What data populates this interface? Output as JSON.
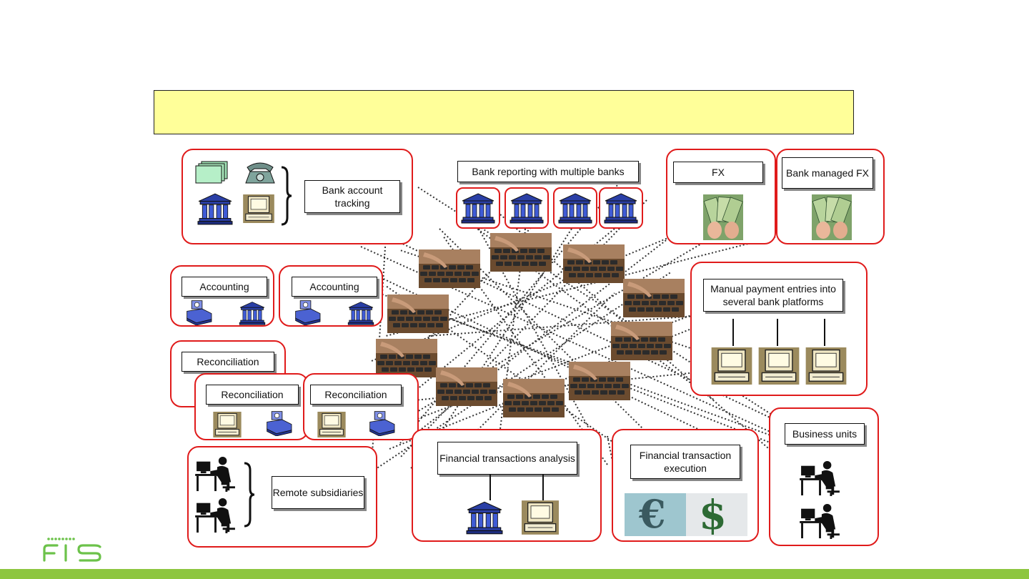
{
  "slide": {
    "title_text": "",
    "colors": {
      "title_bg": "#ffff99",
      "frame": "#e01b1b",
      "bank_blue": "#2a3fa6",
      "footer_green": "#8dc63f",
      "logo_green": "#6cc24a"
    }
  },
  "labels": {
    "bank_account_tracking": "Bank account tracking",
    "bank_reporting": "Bank reporting with multiple banks",
    "fx": "FX",
    "bank_managed_fx": "Bank managed FX",
    "accounting_1": "Accounting",
    "accounting_2": "Accounting",
    "manual_payment": "Manual payment entries into several bank platforms",
    "reconciliation_1": "Reconciliation",
    "reconciliation_2": "Reconciliation",
    "reconciliation_3": "Reconciliation",
    "business_units": "Business units",
    "remote_subsidiaries": "Remote subsidiaries",
    "financial_transactions_analysis": "Financial transactions analysis",
    "financial_transaction_execution": "Financial transaction execution"
  },
  "icons": [
    "documents-icon",
    "telephone-icon",
    "bank-icon",
    "computer-icon",
    "money-icon",
    "keyboard-photo",
    "person-at-desk-icon",
    "currency-symbols-photo"
  ],
  "logo": {
    "text": "FIS"
  }
}
